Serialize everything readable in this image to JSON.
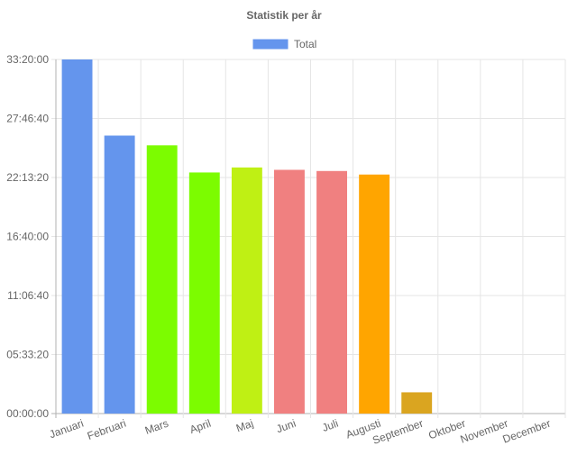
{
  "chart_data": {
    "type": "bar",
    "title": "Statistik per år",
    "xlabel": "",
    "ylabel": "",
    "ylim": [
      0,
      120000
    ],
    "yticks": [
      0,
      20000,
      40000,
      60000,
      80000,
      100000,
      120000
    ],
    "ytick_labels": [
      "00:00:00",
      "05:33:20",
      "11:06:40",
      "16:40:00",
      "22:13:20",
      "27:46:40",
      "33:20:00"
    ],
    "categories": [
      "Januari",
      "Februari",
      "Mars",
      "April",
      "Maj",
      "Juni",
      "Juli",
      "Augusti",
      "September",
      "Oktober",
      "November",
      "December"
    ],
    "series": [
      {
        "name": "Total",
        "legend_color": "#6495ED",
        "values": [
          120000,
          94200,
          90900,
          81700,
          83400,
          82600,
          82200,
          81000,
          7200,
          0,
          0,
          0
        ],
        "colors": [
          "#6495ED",
          "#6495ED",
          "#7CFC00",
          "#7CFC00",
          "#BFF014",
          "#F08080",
          "#F08080",
          "#FFA500",
          "#DAA520",
          "#6495ED",
          "#6495ED",
          "#6495ED"
        ]
      }
    ],
    "grid": true,
    "legend_position": "top-center"
  }
}
